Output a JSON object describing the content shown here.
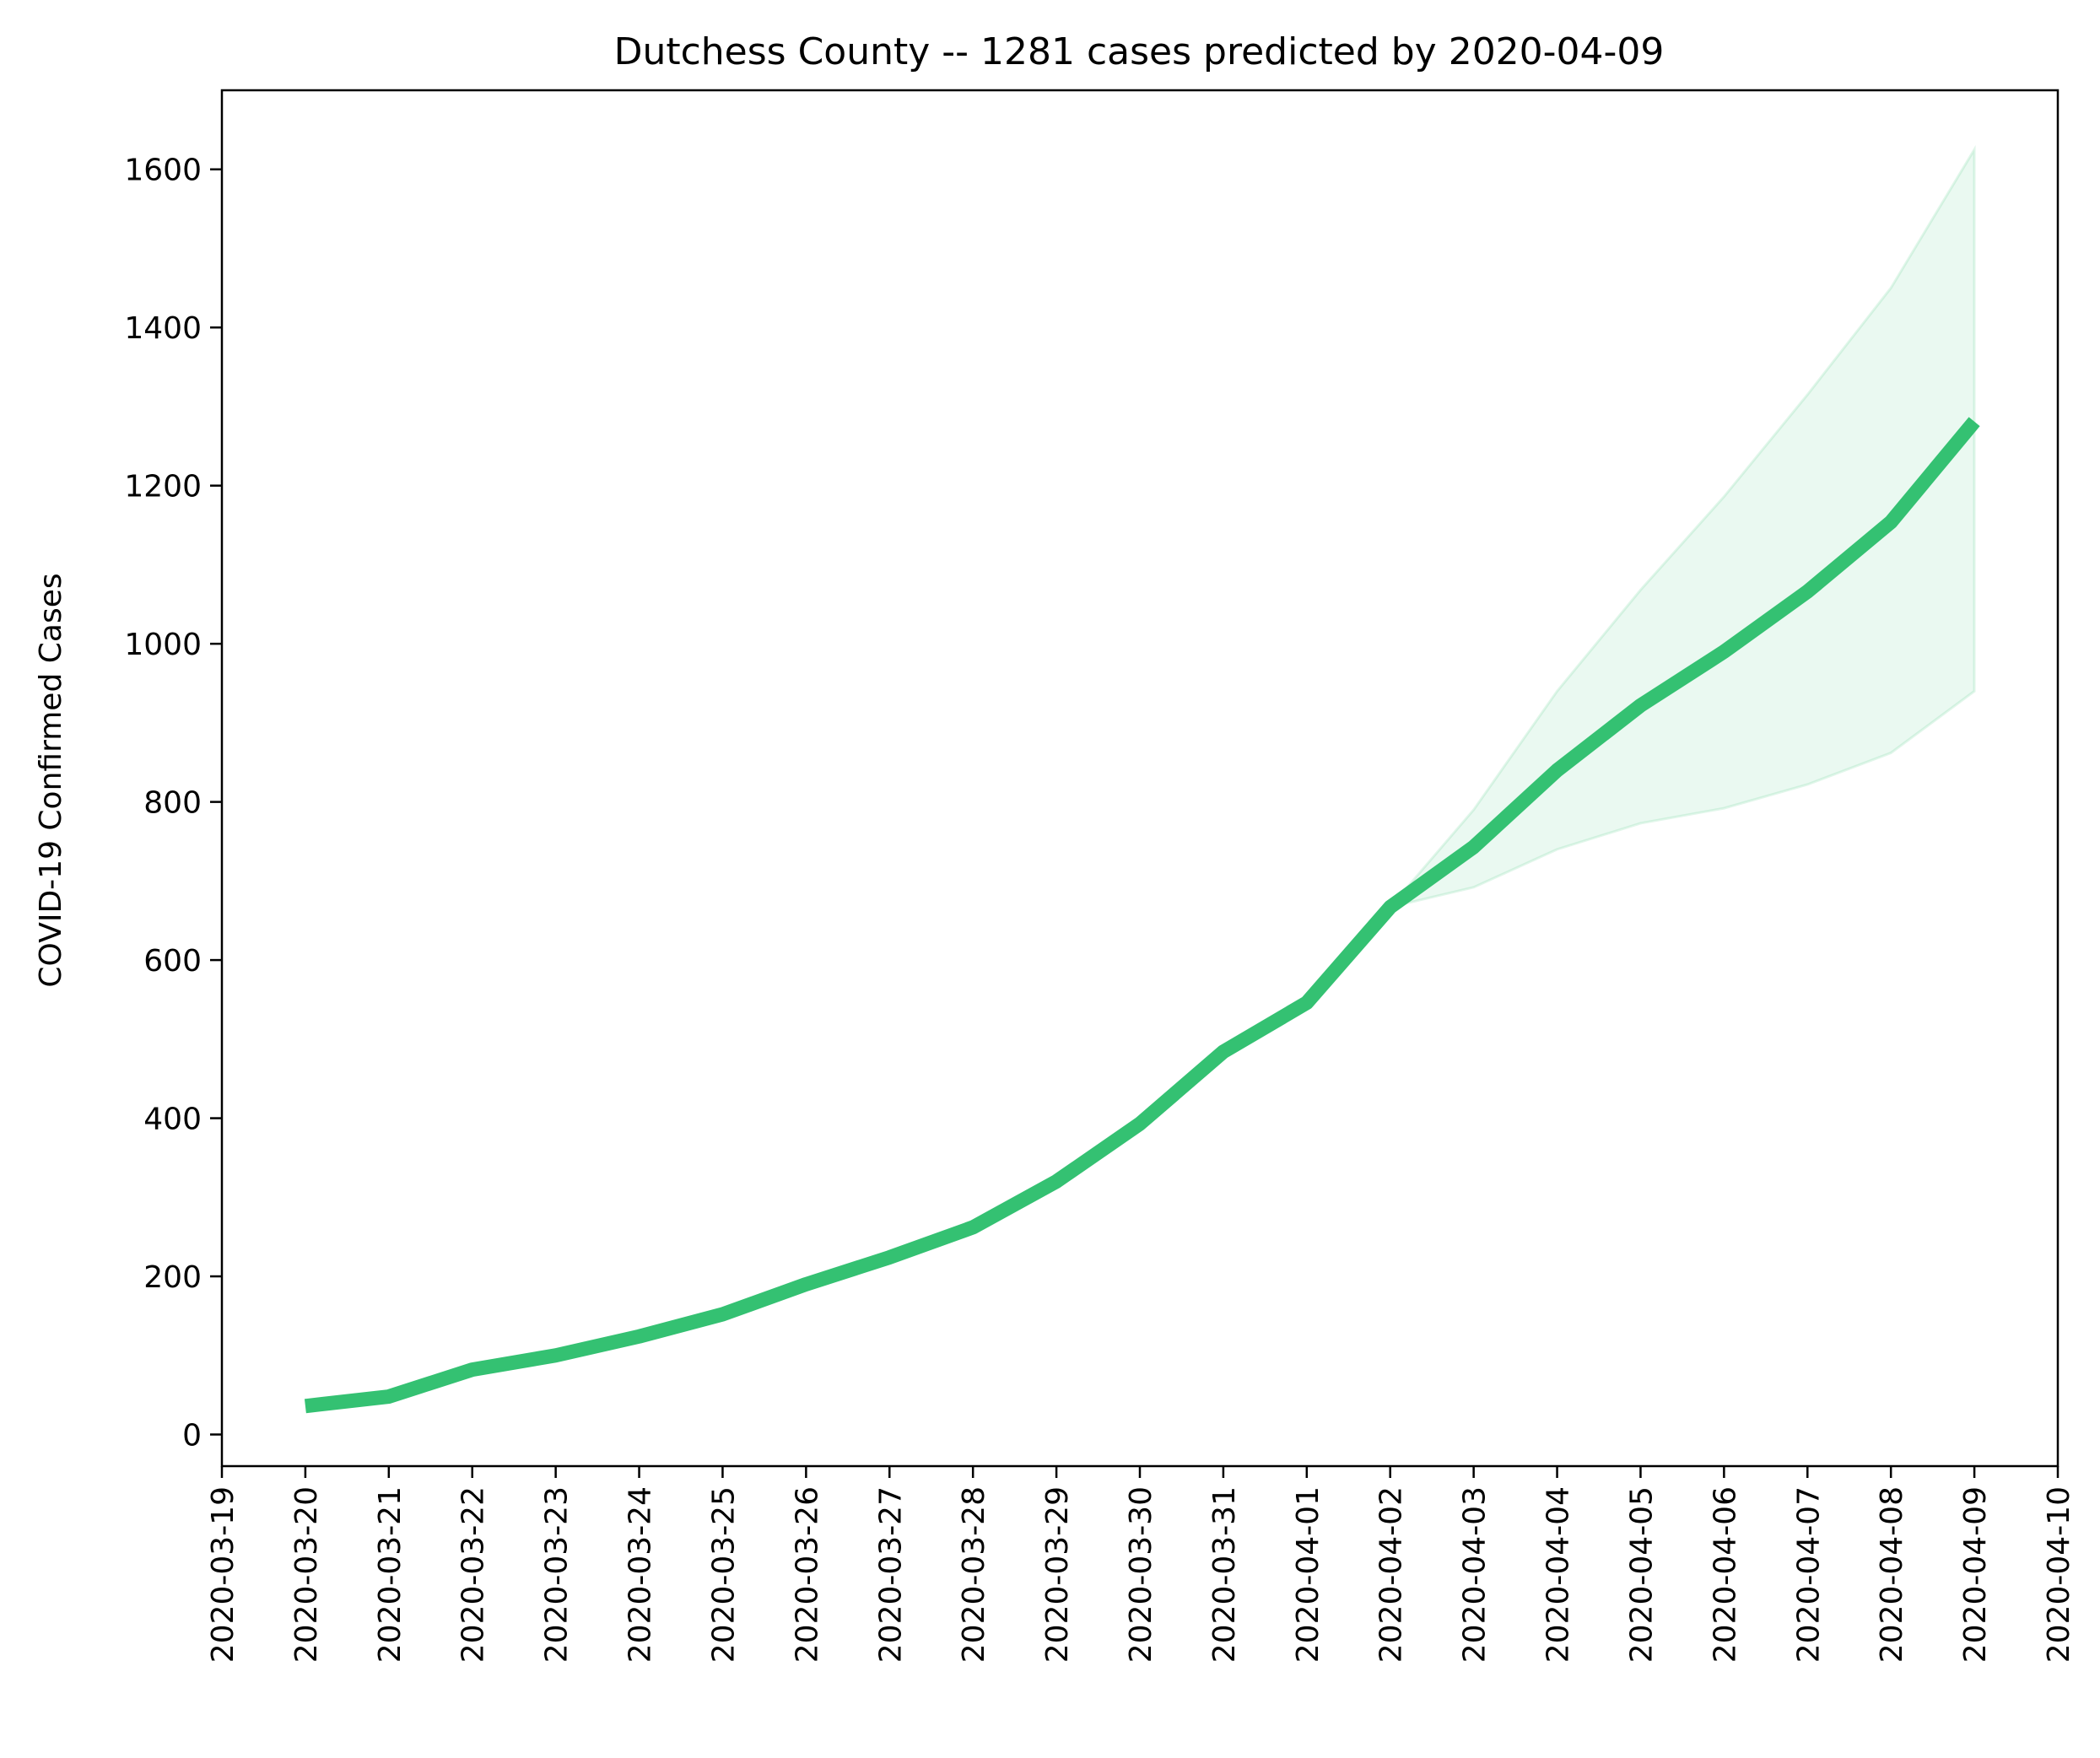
{
  "chart_data": {
    "type": "line",
    "title": "Dutchess County  --  1281 cases predicted by 2020-04-09",
    "xlabel": "",
    "ylabel": "COVID-19 Confirmed Cases",
    "x_ticks": [
      "2020-03-19",
      "2020-03-20",
      "2020-03-21",
      "2020-03-22",
      "2020-03-23",
      "2020-03-24",
      "2020-03-25",
      "2020-03-26",
      "2020-03-27",
      "2020-03-28",
      "2020-03-29",
      "2020-03-30",
      "2020-03-31",
      "2020-04-01",
      "2020-04-02",
      "2020-04-03",
      "2020-04-04",
      "2020-04-05",
      "2020-04-06",
      "2020-04-07",
      "2020-04-08",
      "2020-04-09",
      "2020-04-10"
    ],
    "y_ticks": [
      0,
      200,
      400,
      600,
      800,
      1000,
      1200,
      1400,
      1600
    ],
    "xlim": [
      "2020-03-19",
      "2020-04-10"
    ],
    "ylim": [
      -40,
      1700
    ],
    "grid": false,
    "line_color": "#34c172",
    "band_color": "#34c172",
    "series": [
      {
        "x": [
          "2020-03-20",
          "2020-03-21",
          "2020-03-22",
          "2020-03-23",
          "2020-03-24",
          "2020-03-25",
          "2020-03-26",
          "2020-03-27",
          "2020-03-28",
          "2020-03-29",
          "2020-03-30",
          "2020-03-31",
          "2020-04-01",
          "2020-04-02",
          "2020-04-03",
          "2020-04-04",
          "2020-04-05",
          "2020-04-06",
          "2020-04-07",
          "2020-04-08",
          "2020-04-09"
        ],
        "y": [
          36,
          48,
          82,
          100,
          124,
          152,
          190,
          224,
          262,
          320,
          393,
          484,
          546,
          667,
          743,
          840,
          922,
          990,
          1066,
          1154,
          1281
        ]
      }
    ],
    "band": {
      "x": [
        "2020-04-02",
        "2020-04-03",
        "2020-04-04",
        "2020-04-05",
        "2020-04-06",
        "2020-04-07",
        "2020-04-08",
        "2020-04-09"
      ],
      "lower": [
        667,
        692,
        740,
        773,
        792,
        822,
        862,
        940
      ],
      "upper": [
        667,
        790,
        940,
        1068,
        1186,
        1315,
        1450,
        1625
      ]
    }
  }
}
